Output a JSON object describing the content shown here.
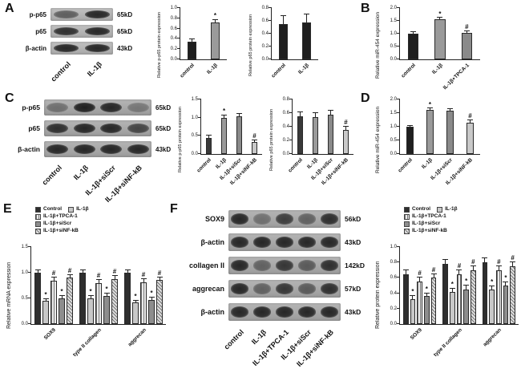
{
  "panels": {
    "a": "A",
    "b": "B",
    "c": "C",
    "d": "D",
    "e": "E",
    "f": "F"
  },
  "blots": [
    {
      "id": "blot-a",
      "rows": [
        {
          "protein": "p-p65",
          "kd": "65kD",
          "bands": [
            0.55,
            0.9
          ]
        },
        {
          "protein": "p65",
          "kd": "65kD",
          "bands": [
            0.85,
            0.9
          ]
        },
        {
          "protein": "β-actin",
          "kd": "43kD",
          "bands": [
            0.9,
            0.9
          ]
        }
      ],
      "lanes": [
        "control",
        "IL-1β"
      ]
    },
    {
      "id": "blot-c",
      "rows": [
        {
          "protein": "p-p65",
          "kd": "65kD",
          "bands": [
            0.4,
            0.95,
            0.9,
            0.35
          ]
        },
        {
          "protein": "p65",
          "kd": "65kD",
          "bands": [
            0.85,
            0.9,
            0.9,
            0.7
          ]
        },
        {
          "protein": "β-actin",
          "kd": "43kD",
          "bands": [
            0.9,
            0.9,
            0.9,
            0.9
          ]
        }
      ],
      "lanes": [
        "control",
        "IL-1β",
        "IL-1β+siScr",
        "IL-1β+siNF-kB"
      ]
    },
    {
      "id": "blot-f",
      "rows": [
        {
          "protein": "SOX9",
          "kd": "56kD",
          "bands": [
            0.9,
            0.4,
            0.75,
            0.5,
            0.85
          ]
        },
        {
          "protein": "β-actin",
          "kd": "43kD",
          "bands": [
            0.9,
            0.9,
            0.9,
            0.9,
            0.9
          ]
        },
        {
          "protein": "collagen II",
          "kd": "142kD",
          "bands": [
            0.9,
            0.5,
            0.8,
            0.55,
            0.85
          ]
        },
        {
          "protein": "aggrecan",
          "kd": "57kD",
          "bands": [
            0.9,
            0.5,
            0.8,
            0.55,
            0.85
          ]
        },
        {
          "protein": "β-actin",
          "kd": "43kD",
          "bands": [
            0.9,
            0.9,
            0.9,
            0.9,
            0.9
          ]
        }
      ],
      "lanes": [
        "control",
        "IL-1β",
        "IL-1β+TPCA-1",
        "IL-1β+siScr",
        "IL-1β+siNF-kB"
      ]
    }
  ],
  "chart_data": [
    {
      "id": "chart-a1",
      "type": "bar",
      "ylabel": "Relative p-p65 protein expression",
      "ylim": [
        0,
        1.0
      ],
      "yticks": [
        0,
        0.2,
        0.4,
        0.6,
        0.8,
        1.0
      ],
      "categories": [
        "control",
        "IL-1β"
      ],
      "values": [
        0.35,
        0.72
      ],
      "errors": [
        0.04,
        0.05
      ],
      "annotations": [
        "",
        "*"
      ],
      "colors": [
        "#1f1f1f",
        "#9a9a9a"
      ]
    },
    {
      "id": "chart-a2",
      "type": "bar",
      "ylabel": "Relative p65 protein expression",
      "ylim": [
        0,
        0.8
      ],
      "yticks": [
        0,
        0.2,
        0.4,
        0.6,
        0.8
      ],
      "categories": [
        "control",
        "IL-1β"
      ],
      "values": [
        0.55,
        0.57
      ],
      "errors": [
        0.12,
        0.13
      ],
      "annotations": [
        "",
        ""
      ],
      "colors": [
        "#1f1f1f",
        "#1f1f1f"
      ]
    },
    {
      "id": "chart-b",
      "type": "bar",
      "ylabel": "Relative miR-454 expression",
      "ylim": [
        0,
        2.0
      ],
      "yticks": [
        0,
        0.5,
        1.0,
        1.5,
        2.0
      ],
      "categories": [
        "control",
        "IL-1β",
        "IL-1β+TPCA-1"
      ],
      "values": [
        1.0,
        1.55,
        1.03
      ],
      "errors": [
        0.05,
        0.07,
        0.06
      ],
      "annotations": [
        "",
        "*",
        "#"
      ],
      "colors": [
        "#1f1f1f",
        "#9a9a9a",
        "#8a8a8a"
      ]
    },
    {
      "id": "chart-c1",
      "type": "bar",
      "ylabel": "Relative p-p65 protein expression",
      "ylim": [
        0,
        1.5
      ],
      "yticks": [
        0,
        0.5,
        1.0,
        1.5
      ],
      "categories": [
        "control",
        "IL-1β",
        "IL-1β+siScr",
        "IL-1β+siNF-kB"
      ],
      "values": [
        0.45,
        1.0,
        1.03,
        0.33
      ],
      "errors": [
        0.05,
        0.07,
        0.07,
        0.05
      ],
      "annotations": [
        "",
        "*",
        "",
        "#"
      ],
      "colors": [
        "#3a3a3a",
        "#9a9a9a",
        "#8a8a8a",
        "#c9c9c9"
      ]
    },
    {
      "id": "chart-c2",
      "type": "bar",
      "ylabel": "Relative p65 protein expression",
      "ylim": [
        0,
        0.8
      ],
      "yticks": [
        0,
        0.2,
        0.4,
        0.6,
        0.8
      ],
      "categories": [
        "control",
        "IL-1β",
        "IL-1β+siScr",
        "IL-1β+siNF-kB"
      ],
      "values": [
        0.55,
        0.54,
        0.58,
        0.35
      ],
      "errors": [
        0.06,
        0.06,
        0.05,
        0.05
      ],
      "annotations": [
        "",
        "",
        "",
        "#"
      ],
      "colors": [
        "#3a3a3a",
        "#9a9a9a",
        "#8a8a8a",
        "#c9c9c9"
      ]
    },
    {
      "id": "chart-d",
      "type": "bar",
      "ylabel": "Relative miR-454 expression",
      "ylim": [
        0,
        2.0
      ],
      "yticks": [
        0,
        0.5,
        1.0,
        1.5,
        2.0
      ],
      "categories": [
        "control",
        "IL-1β",
        "IL-1β+siScr",
        "IL-1β+siNF-kB"
      ],
      "values": [
        1.0,
        1.62,
        1.6,
        1.15
      ],
      "errors": [
        0.04,
        0.05,
        0.06,
        0.1
      ],
      "annotations": [
        "",
        "*",
        "",
        "#"
      ],
      "colors": [
        "#1f1f1f",
        "#9a9a9a",
        "#8a8a8a",
        "#c9c9c9"
      ]
    },
    {
      "id": "chart-e",
      "type": "grouped-bar",
      "ylabel": "Relative mRNA expression",
      "ylim": [
        0,
        1.5
      ],
      "yticks": [
        0,
        0.5,
        1.0,
        1.5
      ],
      "categories": [
        "SOX9",
        "type II collagen",
        "aggrecan"
      ],
      "series": [
        {
          "name": "Control",
          "style": "solid-dark",
          "values": [
            1.0,
            1.0,
            1.0
          ],
          "errors": [
            0.05,
            0.05,
            0.05
          ],
          "annotations": [
            "",
            "",
            ""
          ]
        },
        {
          "name": "IL-1β",
          "style": "solid-light",
          "values": [
            0.45,
            0.5,
            0.42
          ],
          "errors": [
            0.04,
            0.05,
            0.04
          ],
          "annotations": [
            "*",
            "*",
            "*"
          ]
        },
        {
          "name": "IL-1β+TPCA-1",
          "style": "striped-v",
          "values": [
            0.85,
            0.8,
            0.82
          ],
          "errors": [
            0.06,
            0.06,
            0.05
          ],
          "annotations": [
            "#",
            "#",
            "#"
          ]
        },
        {
          "name": "IL-1β+siScr",
          "style": "solid-mid",
          "values": [
            0.5,
            0.55,
            0.47
          ],
          "errors": [
            0.05,
            0.05,
            0.05
          ],
          "annotations": [
            "*",
            "*",
            "*"
          ]
        },
        {
          "name": "IL-1β+siNF-kB",
          "style": "striped-d",
          "values": [
            0.9,
            0.88,
            0.86
          ],
          "errors": [
            0.05,
            0.06,
            0.05
          ],
          "annotations": [
            "#",
            "#",
            "#"
          ]
        }
      ],
      "legend": [
        {
          "label": "Control",
          "style": "solid-dark"
        },
        {
          "label": "IL-1β",
          "style": "solid-light"
        },
        {
          "label": "IL-1β+TPCA-1",
          "style": "striped-v"
        },
        {
          "label": "IL-1β+siScr",
          "style": "solid-mid"
        },
        {
          "label": "IL-1β+siNF-kB",
          "style": "striped-d"
        }
      ]
    },
    {
      "id": "chart-f",
      "type": "grouped-bar",
      "ylabel": "Relative protein expression",
      "ylim": [
        0,
        1.0
      ],
      "yticks": [
        0,
        0.2,
        0.4,
        0.6,
        0.8,
        1.0
      ],
      "categories": [
        "SOX9",
        "type II collagen",
        "aggrecan"
      ],
      "series": [
        {
          "name": "Control",
          "style": "solid-dark",
          "values": [
            0.65,
            0.78,
            0.8
          ],
          "errors": [
            0.05,
            0.05,
            0.05
          ],
          "annotations": [
            "",
            "",
            ""
          ]
        },
        {
          "name": "IL-1β",
          "style": "solid-light",
          "values": [
            0.32,
            0.42,
            0.45
          ],
          "errors": [
            0.04,
            0.04,
            0.04
          ],
          "annotations": [
            "*",
            "*",
            "*"
          ]
        },
        {
          "name": "IL-1β+TPCA-1",
          "style": "striped-v",
          "values": [
            0.55,
            0.65,
            0.7
          ],
          "errors": [
            0.05,
            0.05,
            0.05
          ],
          "annotations": [
            "#",
            "#",
            "#"
          ]
        },
        {
          "name": "IL-1β+siScr",
          "style": "solid-mid",
          "values": [
            0.36,
            0.45,
            0.5
          ],
          "errors": [
            0.04,
            0.05,
            0.04
          ],
          "annotations": [
            "*",
            "*",
            "*"
          ]
        },
        {
          "name": "IL-1β+siNF-kB",
          "style": "striped-d",
          "values": [
            0.6,
            0.7,
            0.75
          ],
          "errors": [
            0.05,
            0.05,
            0.05
          ],
          "annotations": [
            "#",
            "#",
            "#"
          ]
        }
      ],
      "legend": [
        {
          "label": "Control",
          "style": "solid-dark"
        },
        {
          "label": "IL-1β",
          "style": "solid-light"
        },
        {
          "label": "IL-1β+TPCA-1",
          "style": "striped-v"
        },
        {
          "label": "IL-1β+siScr",
          "style": "solid-mid"
        },
        {
          "label": "IL-1β+siNF-kB",
          "style": "striped-d"
        }
      ]
    }
  ]
}
